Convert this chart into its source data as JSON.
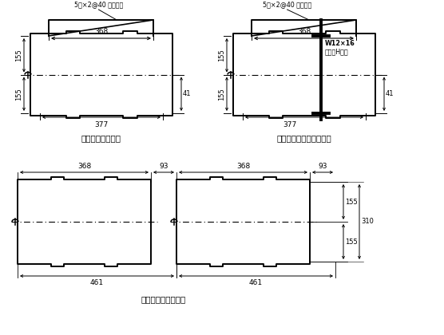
{
  "title1": "压型钢板横截面图",
  "title2": "加强型压型钢板横截面图",
  "title3": "压型钢板拼装示意图",
  "label_stiffener": "5宽×2@40 深加劲肋",
  "label_h_beam_1": "W12×16",
  "label_h_beam_2": "宽翼缘H型钢",
  "dim_368": "368",
  "dim_377": "377",
  "dim_41": "41",
  "dim_155": "155",
  "dim_93": "93",
  "dim_461": "461",
  "dim_310": "310",
  "bg_color": "#ffffff",
  "line_color": "#000000"
}
